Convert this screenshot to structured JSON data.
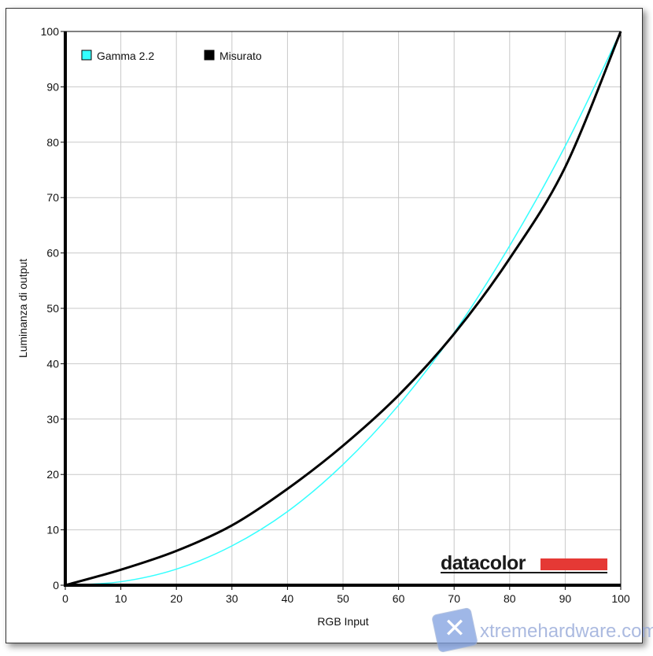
{
  "chart_data": {
    "type": "line",
    "title": "",
    "xlabel": "RGB Input",
    "ylabel": "Luminanza di output",
    "xlim": [
      0,
      100
    ],
    "ylim": [
      0,
      100
    ],
    "xticks": [
      0,
      10,
      20,
      30,
      40,
      50,
      60,
      70,
      80,
      90,
      100
    ],
    "yticks": [
      0,
      10,
      20,
      30,
      40,
      50,
      60,
      70,
      80,
      90,
      100
    ],
    "grid": true,
    "legend_placement": "top-left",
    "x": [
      0,
      10,
      20,
      30,
      40,
      50,
      60,
      70,
      80,
      90,
      100
    ],
    "series": [
      {
        "name": "Gamma 2.2",
        "color": "#33ffff",
        "values": [
          0,
          0.63,
          2.9,
          7.1,
          13.3,
          21.8,
          32.5,
          45.6,
          61.3,
          79.3,
          100
        ]
      },
      {
        "name": "Misurato",
        "color": "#000000",
        "values": [
          0,
          2.8,
          6.2,
          10.8,
          17.4,
          25.2,
          34.3,
          45.4,
          59.0,
          75.5,
          100
        ]
      }
    ]
  },
  "logo": {
    "text": "datacolor",
    "accent": "#e53935"
  },
  "watermark": {
    "text": "xtremehardware.com"
  }
}
